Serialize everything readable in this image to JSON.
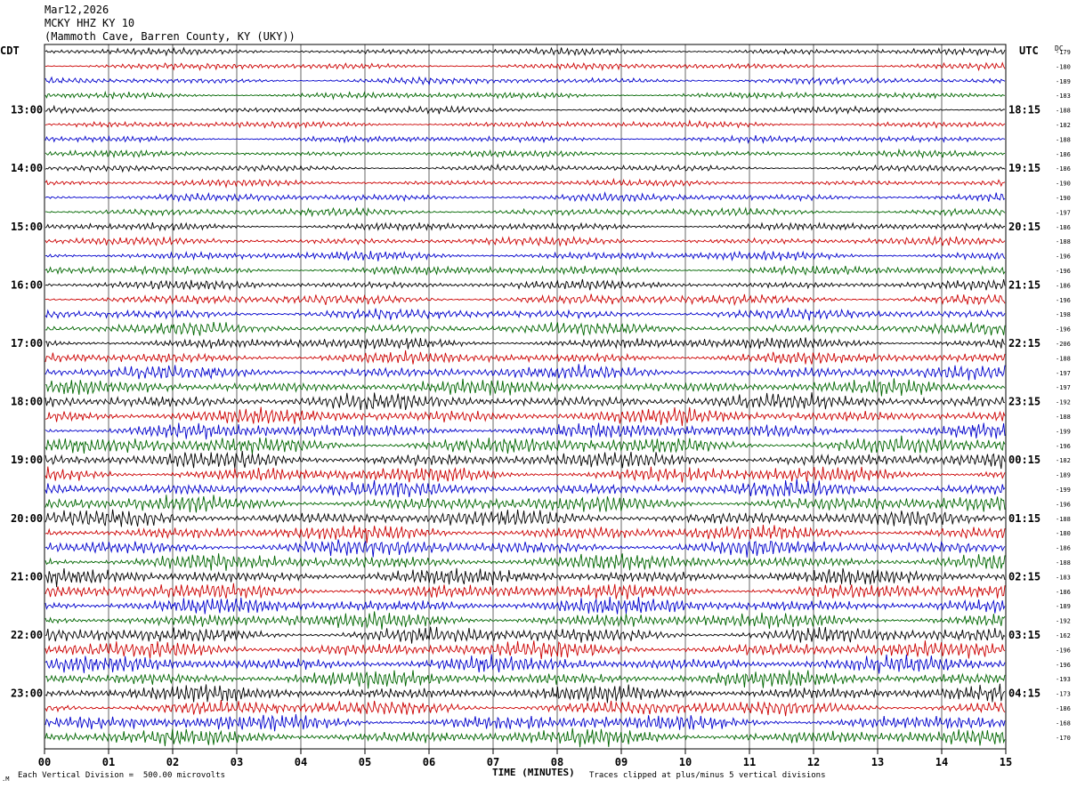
{
  "header": {
    "date": "Mar12,2026",
    "station": "MCKY HHZ KY 10",
    "location": "(Mammoth Cave, Barren County, KY (UKY))"
  },
  "left_timezone": "CDT",
  "right_timezone": "UTC",
  "dc_label": "DC",
  "footer": {
    "scale_note": "Each Vertical Division =  500.00 microvolts",
    "clip_note": "Traces clipped at plus/minus 5 vertical divisions",
    "corner_mark": ".M"
  },
  "chart_data": {
    "type": "line",
    "title": "",
    "xlabel": "TIME (MINUTES)",
    "ylabel": "",
    "xlim": [
      0,
      15
    ],
    "x_ticks": [
      "00",
      "01",
      "02",
      "03",
      "04",
      "05",
      "06",
      "07",
      "08",
      "09",
      "10",
      "11",
      "12",
      "13",
      "14",
      "15"
    ],
    "grid": true,
    "trace_colors": [
      "#000000",
      "#cc0000",
      "#0000cc",
      "#006600"
    ],
    "left_hour_labels": [
      "13:00",
      "14:00",
      "15:00",
      "16:00",
      "17:00",
      "18:00",
      "19:00",
      "20:00",
      "21:00",
      "22:00",
      "23:00"
    ],
    "right_hour_labels": [
      "18:15",
      "19:15",
      "20:15",
      "21:15",
      "22:15",
      "23:15",
      "00:15",
      "01:15",
      "02:15",
      "03:15",
      "04:15"
    ],
    "hour_label_trace_index": [
      4,
      8,
      12,
      16,
      20,
      24,
      28,
      32,
      36,
      40,
      44
    ],
    "trace_count": 48,
    "dc_offsets": [
      "-179",
      "-180",
      "-189",
      "-183",
      "-188",
      "-182",
      "-188",
      "-186",
      "-186",
      "-190",
      "-190",
      "-197",
      "-186",
      "-188",
      "-196",
      "-196",
      "-186",
      "-196",
      "-198",
      "-196",
      "-206",
      "-188",
      "-197",
      "-197",
      "-192",
      "-188",
      "-199",
      "-196",
      "-182",
      "-189",
      "-199",
      "-196",
      "-188",
      "-180",
      "-186",
      "-188",
      "-183",
      "-186",
      "-189",
      "-192",
      "-162",
      "-196",
      "-196",
      "-193",
      "-173",
      "-186",
      "-168",
      "-170"
    ],
    "trace_amplitude_divisions": [
      0.25,
      0.25,
      0.25,
      0.25,
      0.25,
      0.25,
      0.25,
      0.25,
      0.25,
      0.25,
      0.3,
      0.3,
      0.3,
      0.3,
      0.35,
      0.35,
      0.35,
      0.4,
      0.4,
      0.45,
      0.45,
      0.45,
      0.5,
      0.55,
      0.6,
      0.6,
      0.6,
      0.65,
      0.6,
      0.6,
      0.6,
      0.6,
      0.6,
      0.6,
      0.6,
      0.6,
      0.6,
      0.6,
      0.6,
      0.6,
      0.6,
      0.6,
      0.6,
      0.6,
      0.6,
      0.6,
      0.6,
      0.6
    ]
  }
}
